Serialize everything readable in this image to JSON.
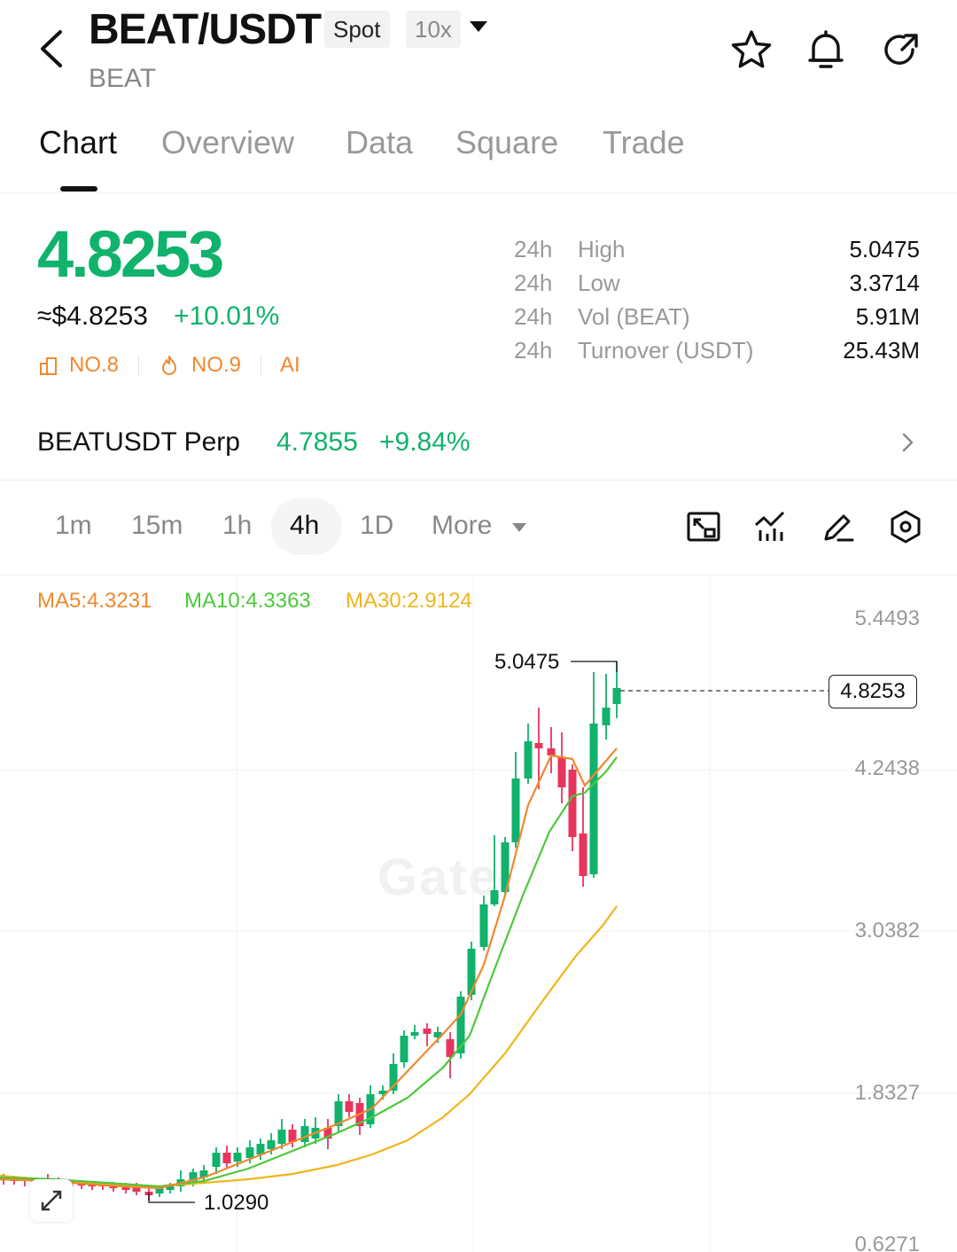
{
  "header": {
    "pair": "BEAT/USDT",
    "market_badge": "Spot",
    "leverage_badge": "10x",
    "base": "BEAT",
    "icons": [
      "back-arrow-icon",
      "star-icon",
      "bell-icon",
      "share-icon"
    ]
  },
  "tabs": [
    "Chart",
    "Overview",
    "Data",
    "Square",
    "Trade"
  ],
  "ticker": {
    "price": "4.8253",
    "approx_usd": "≈$4.8253",
    "change": "+10.01%",
    "rank1": "NO.8",
    "rank2": "NO.9",
    "ai": "AI",
    "stats": [
      {
        "period": "24h",
        "label": "High",
        "value": "5.0475"
      },
      {
        "period": "24h",
        "label": "Low",
        "value": "3.3714"
      },
      {
        "period": "24h",
        "label": "Vol (BEAT)",
        "value": "5.91M"
      },
      {
        "period": "24h",
        "label": "Turnover (USDT)",
        "value": "25.43M"
      }
    ]
  },
  "perp": {
    "name": "BEATUSDT Perp",
    "price": "4.7855",
    "change": "+9.84%"
  },
  "timeframes": [
    "1m",
    "15m",
    "1h",
    "4h",
    "1D",
    "More"
  ],
  "active_timeframe": "4h",
  "toolbar_icons": [
    "fullscreen-icon",
    "indicators-icon",
    "draw-icon",
    "settings-icon"
  ],
  "colors": {
    "up": "#10b26c",
    "down": "#e8355d",
    "ma5": "#f0882f",
    "ma10": "#4cc93a",
    "ma30": "#f0b51b",
    "rank": "#f0882f"
  },
  "chart_data": {
    "type": "candlestick",
    "ma_legend": [
      "MA5:4.3231",
      "MA10:4.3363",
      "MA30:2.9124"
    ],
    "y_ticks": [
      "5.4493",
      "4.2438",
      "3.0382",
      "1.8327",
      "0.6271"
    ],
    "high_label": "5.0475",
    "low_label": "1.0290",
    "last_price": "4.8253",
    "watermark": "Gate"
  }
}
